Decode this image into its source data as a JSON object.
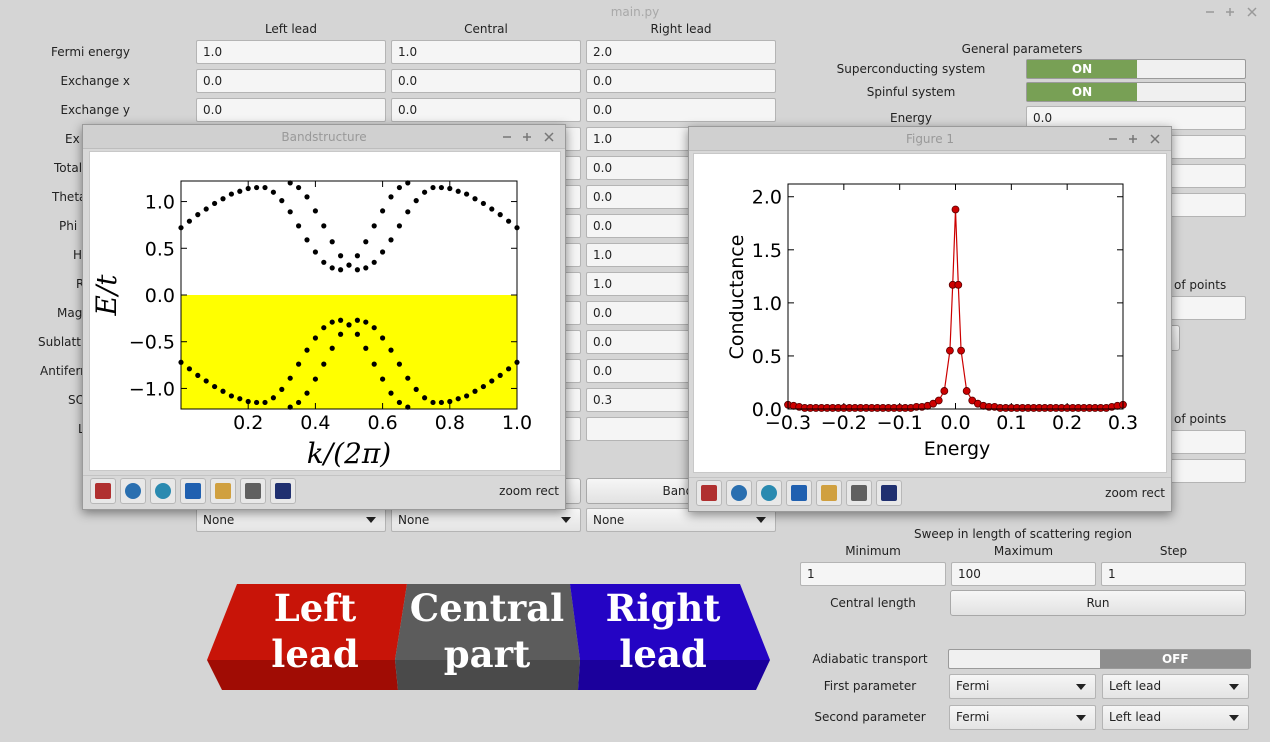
{
  "window": {
    "title": "main.py"
  },
  "lead_form": {
    "columns": [
      "Left lead",
      "Central",
      "Right lead"
    ],
    "rows": [
      {
        "label": "Fermi energy",
        "left": "1.0",
        "central": "1.0",
        "right": "2.0"
      },
      {
        "label": "Exchange x",
        "left": "0.0",
        "central": "0.0",
        "right": "0.0"
      },
      {
        "label": "Exchange y",
        "left": "0.0",
        "central": "0.0",
        "right": "0.0"
      },
      {
        "label": "Ex",
        "right": "1.0"
      },
      {
        "label": "Total",
        "right": "0.0"
      },
      {
        "label": "Theta",
        "right": "0.0"
      },
      {
        "label": "Phi",
        "right": "0.0"
      },
      {
        "label": "H",
        "right": "1.0"
      },
      {
        "label": "R",
        "right": "1.0"
      },
      {
        "label": "Mag",
        "right": "0.0"
      },
      {
        "label": "Sublatti",
        "right": "0.0"
      },
      {
        "label": "Antiferr",
        "right": "0.0"
      },
      {
        "label": "SO",
        "right": "0.3"
      },
      {
        "label": "L"
      }
    ],
    "bands_button": "Bands",
    "selects": [
      "None",
      "None",
      "None"
    ]
  },
  "general": {
    "title": "General parameters",
    "superconducting": {
      "label": "Superconducting system",
      "state": "ON"
    },
    "spinful": {
      "label": "Spinful system",
      "state": "ON"
    },
    "energy": {
      "label": "Energy",
      "value": "0.0"
    },
    "points_1": "of points",
    "points_2": "of points"
  },
  "sweep": {
    "title": "Sweep in length of scattering region",
    "headers": [
      "Minimum",
      "Maximum",
      "Step"
    ],
    "values": [
      "1",
      "100",
      "1"
    ],
    "label": "Central length",
    "button": "Run"
  },
  "adiabatic": {
    "label": "Adiabatic transport",
    "state": "OFF",
    "first": {
      "label": "First parameter",
      "options": [
        "Fermi",
        "Left lead"
      ]
    },
    "second": {
      "label": "Second parameter",
      "options": [
        "Fermi",
        "Left lead"
      ]
    }
  },
  "banner": [
    "Left lead",
    "Central part",
    "Right lead"
  ],
  "bandstructure_window": {
    "title": "Bandstructure",
    "toolbar_mode": "zoom rect",
    "chart_data": {
      "type": "scatter",
      "xlabel": "k/(2π)",
      "ylabel": "E/t",
      "xlim": [
        0,
        1
      ],
      "ylim": [
        -1.22,
        1.22
      ],
      "xticks": [
        0.2,
        0.4,
        0.6,
        0.8,
        {
          "value": 1,
          "label": "1.0"
        }
      ],
      "yticks": [
        {
          "value": -1,
          "label": "−1.0"
        },
        {
          "value": -0.5,
          "label": "−0.5"
        },
        {
          "value": 0,
          "label": "0.0"
        },
        0.5,
        {
          "value": 1,
          "label": "1.0"
        }
      ],
      "fill_below": 0,
      "fill_color": "#ffff00",
      "x": [
        0,
        0.025,
        0.05,
        0.075,
        0.1,
        0.125,
        0.15,
        0.175,
        0.2,
        0.225,
        0.25,
        0.275,
        0.3,
        0.325,
        0.35,
        0.375,
        0.4,
        0.425,
        0.45,
        0.475,
        0.5,
        0.525,
        0.55,
        0.575,
        0.6,
        0.625,
        0.65,
        0.675,
        0.7,
        0.725,
        0.75,
        0.775,
        0.8,
        0.825,
        0.85,
        0.875,
        0.9,
        0.925,
        0.95,
        0.975,
        1
      ],
      "series": [
        {
          "color": "#000000",
          "values": [
            0.72,
            0.79,
            0.86,
            0.92,
            0.98,
            1.03,
            1.08,
            1.11,
            1.14,
            1.15,
            1.15,
            1.1,
            1.01,
            0.89,
            0.74,
            0.59,
            0.46,
            0.35,
            0.29,
            0.27,
            0.32,
            0.42,
            0.57,
            0.74,
            0.9,
            1.05,
            1.15,
            1.2,
            null,
            null,
            null,
            null,
            null,
            null,
            null,
            null,
            null,
            null,
            null,
            null,
            null
          ]
        },
        {
          "color": "#000000",
          "values": [
            null,
            null,
            null,
            null,
            null,
            null,
            null,
            null,
            null,
            null,
            null,
            null,
            null,
            1.2,
            1.15,
            1.05,
            0.9,
            0.74,
            0.57,
            0.42,
            0.32,
            0.27,
            0.29,
            0.35,
            0.46,
            0.59,
            0.74,
            0.89,
            1.01,
            1.1,
            1.15,
            1.15,
            1.14,
            1.11,
            1.08,
            1.03,
            0.98,
            0.92,
            0.86,
            0.79,
            0.72
          ]
        },
        {
          "color": "#000000",
          "values": [
            -0.72,
            -0.79,
            -0.86,
            -0.92,
            -0.98,
            -1.03,
            -1.08,
            -1.11,
            -1.14,
            -1.15,
            -1.15,
            -1.1,
            -1.01,
            -0.89,
            -0.74,
            -0.59,
            -0.46,
            -0.35,
            -0.29,
            -0.27,
            -0.32,
            -0.42,
            -0.57,
            -0.74,
            -0.9,
            -1.05,
            -1.15,
            -1.2,
            null,
            null,
            null,
            null,
            null,
            null,
            null,
            null,
            null,
            null,
            null,
            null,
            null
          ]
        },
        {
          "color": "#000000",
          "values": [
            null,
            null,
            null,
            null,
            null,
            null,
            null,
            null,
            null,
            null,
            null,
            null,
            null,
            -1.2,
            -1.15,
            -1.05,
            -0.9,
            -0.74,
            -0.57,
            -0.42,
            -0.32,
            -0.27,
            -0.29,
            -0.35,
            -0.46,
            -0.59,
            -0.74,
            -0.89,
            -1.01,
            -1.1,
            -1.15,
            -1.15,
            -1.14,
            -1.11,
            -1.08,
            -1.03,
            -0.98,
            -0.92,
            -0.86,
            -0.79,
            -0.72
          ]
        }
      ]
    }
  },
  "figure_window": {
    "title": "Figure 1",
    "toolbar_mode": "zoom rect",
    "chart_data": {
      "type": "line",
      "xlabel": "Energy",
      "ylabel": "Conductance",
      "xlim": [
        -0.3,
        0.3
      ],
      "ylim": [
        0,
        2.12
      ],
      "xticks": [
        {
          "value": -0.3,
          "label": "−0.3"
        },
        {
          "value": -0.2,
          "label": "−0.2"
        },
        {
          "value": -0.1,
          "label": "−0.1"
        },
        {
          "value": 0,
          "label": "0.0"
        },
        0.1,
        0.2,
        0.3
      ],
      "yticks": [
        {
          "value": 0,
          "label": "0.0"
        },
        0.5,
        {
          "value": 1,
          "label": "1.0"
        },
        1.5,
        {
          "value": 2,
          "label": "2.0"
        }
      ],
      "x": [
        -0.3,
        -0.29,
        -0.28,
        -0.27,
        -0.26,
        -0.25,
        -0.24,
        -0.23,
        -0.22,
        -0.21,
        -0.2,
        -0.19,
        -0.18,
        -0.17,
        -0.16,
        -0.15,
        -0.14,
        -0.13,
        -0.12,
        -0.11,
        -0.1,
        -0.09,
        -0.08,
        -0.07,
        -0.06,
        -0.05,
        -0.04,
        -0.03,
        -0.02,
        -0.01,
        -0.005,
        0,
        0.005,
        0.01,
        0.02,
        0.03,
        0.04,
        0.05,
        0.06,
        0.07,
        0.08,
        0.09,
        0.1,
        0.11,
        0.12,
        0.13,
        0.14,
        0.15,
        0.16,
        0.17,
        0.18,
        0.19,
        0.2,
        0.21,
        0.22,
        0.23,
        0.24,
        0.25,
        0.26,
        0.27,
        0.28,
        0.29,
        0.3
      ],
      "series": [
        {
          "color": "#cc0000",
          "values": [
            0.04,
            0.03,
            0.02,
            0.01,
            0.01,
            0.01,
            0.01,
            0.01,
            0.01,
            0.01,
            0.01,
            0.01,
            0.01,
            0.01,
            0.01,
            0.01,
            0.01,
            0.01,
            0.01,
            0.01,
            0.01,
            0.01,
            0.01,
            0.02,
            0.02,
            0.03,
            0.05,
            0.08,
            0.17,
            0.55,
            1.17,
            1.88,
            1.17,
            0.55,
            0.17,
            0.08,
            0.05,
            0.03,
            0.02,
            0.02,
            0.01,
            0.01,
            0.01,
            0.01,
            0.01,
            0.01,
            0.01,
            0.01,
            0.01,
            0.01,
            0.01,
            0.01,
            0.01,
            0.01,
            0.01,
            0.01,
            0.01,
            0.01,
            0.01,
            0.01,
            0.02,
            0.03,
            0.04
          ]
        }
      ]
    }
  }
}
